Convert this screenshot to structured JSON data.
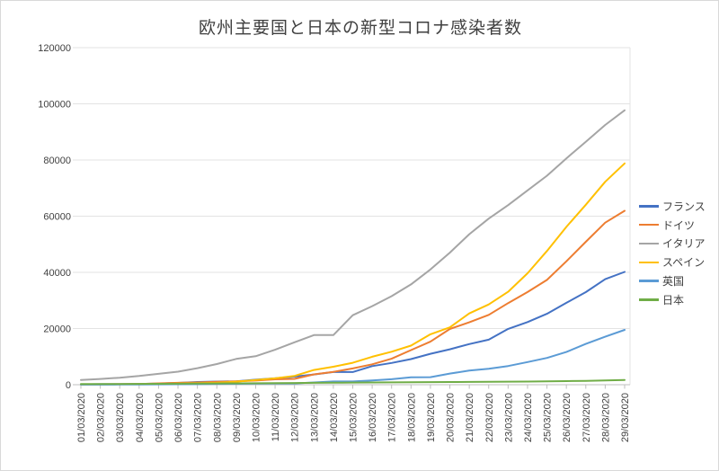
{
  "chart_data": {
    "type": "line",
    "title": "欧州主要国と日本の新型コロナ感染者数",
    "x_labels": [
      "01/03/2020",
      "02/03/2020",
      "03/03/2020",
      "04/03/2020",
      "05/03/2020",
      "06/03/2020",
      "07/03/2020",
      "08/03/2020",
      "09/03/2020",
      "10/03/2020",
      "11/03/2020",
      "12/03/2020",
      "13/03/2020",
      "14/03/2020",
      "15/03/2020",
      "16/03/2020",
      "17/03/2020",
      "18/03/2020",
      "19/03/2020",
      "20/03/2020",
      "21/03/2020",
      "22/03/2020",
      "23/03/2020",
      "24/03/2020",
      "25/03/2020",
      "26/03/2020",
      "27/03/2020",
      "28/03/2020",
      "29/03/2020"
    ],
    "series": [
      {
        "name": "フランス",
        "color": "#4472C4",
        "values": [
          130,
          191,
          204,
          285,
          377,
          653,
          949,
          1126,
          1209,
          1784,
          2281,
          2876,
          3661,
          4499,
          4499,
          6633,
          7730,
          9134,
          10995,
          12612,
          14459,
          16018,
          19856,
          22302,
          25233,
          29155,
          32964,
          37575,
          40174
        ]
      },
      {
        "name": "ドイツ",
        "color": "#ED7D31",
        "values": [
          130,
          159,
          196,
          262,
          482,
          670,
          799,
          1040,
          1176,
          1457,
          1908,
          2078,
          3675,
          4585,
          5795,
          7272,
          9257,
          12327,
          15320,
          19848,
          22213,
          24873,
          29056,
          32986,
          37323,
          43938,
          50871,
          57695,
          61913
        ]
      },
      {
        "name": "イタリア",
        "color": "#A5A5A5",
        "values": [
          1694,
          2036,
          2502,
          3089,
          3858,
          4636,
          5883,
          7375,
          9172,
          10149,
          12462,
          15113,
          17660,
          17660,
          24747,
          27980,
          31506,
          35713,
          41035,
          47021,
          53578,
          59138,
          63927,
          69176,
          74386,
          80589,
          86498,
          92472,
          97689
        ]
      },
      {
        "name": "スペイン",
        "color": "#FFC000",
        "values": [
          84,
          120,
          165,
          222,
          259,
          400,
          500,
          673,
          1073,
          1695,
          2277,
          3146,
          5232,
          6391,
          7798,
          9942,
          11748,
          13910,
          17963,
          20410,
          25374,
          28572,
          33089,
          39673,
          47610,
          56188,
          64059,
          72248,
          78797
        ]
      },
      {
        "name": "英国",
        "color": "#5B9BD5",
        "values": [
          36,
          40,
          51,
          85,
          115,
          163,
          206,
          273,
          321,
          382,
          456,
          456,
          798,
          1140,
          1140,
          1543,
          1950,
          2626,
          2689,
          3983,
          5018,
          5683,
          6650,
          8077,
          9529,
          11658,
          14543,
          17089,
          19522
        ]
      },
      {
        "name": "日本",
        "color": "#70AD47",
        "values": [
          239,
          254,
          268,
          284,
          317,
          349,
          408,
          455,
          488,
          514,
          568,
          620,
          675,
          716,
          780,
          814,
          829,
          873,
          924,
          963,
          1007,
          1046,
          1089,
          1128,
          1193,
          1292,
          1387,
          1499,
          1693
        ]
      }
    ],
    "y_axis": {
      "min": 0,
      "max": 120000,
      "step": 20000,
      "tick_labels": [
        "0",
        "20000",
        "40000",
        "60000",
        "80000",
        "100000",
        "120000"
      ]
    },
    "legend_position": "right",
    "grid": true,
    "colors": {
      "grid_line": "#E3E3E3",
      "axis_line": "#BFBFBF",
      "tick": "#BFBFBF",
      "label_text": "#404040"
    }
  }
}
